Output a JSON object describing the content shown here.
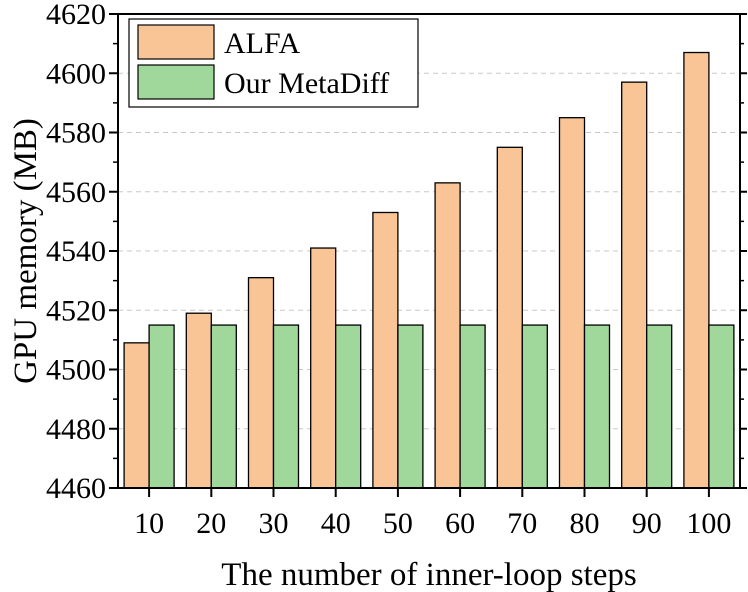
{
  "chart_data": {
    "type": "bar",
    "title": "",
    "xlabel": "The number of inner-loop steps",
    "ylabel": "GPU memory (MB)",
    "categories": [
      "10",
      "20",
      "30",
      "40",
      "50",
      "60",
      "70",
      "80",
      "90",
      "100"
    ],
    "series": [
      {
        "name": "ALFA",
        "color": "#f9c596",
        "values": [
          4509,
          4519,
          4531,
          4541,
          4553,
          4563,
          4575,
          4585,
          4597,
          4607
        ]
      },
      {
        "name": "Our MetaDiff",
        "color": "#a0d89b",
        "values": [
          4515,
          4515,
          4515,
          4515,
          4515,
          4515,
          4515,
          4515,
          4515,
          4515
        ]
      }
    ],
    "ylim": [
      4460,
      4620
    ],
    "yticks": [
      "4460",
      "4480",
      "4500",
      "4520",
      "4540",
      "4560",
      "4580",
      "4600",
      "4620"
    ],
    "grid": true,
    "legend": "top-left"
  }
}
